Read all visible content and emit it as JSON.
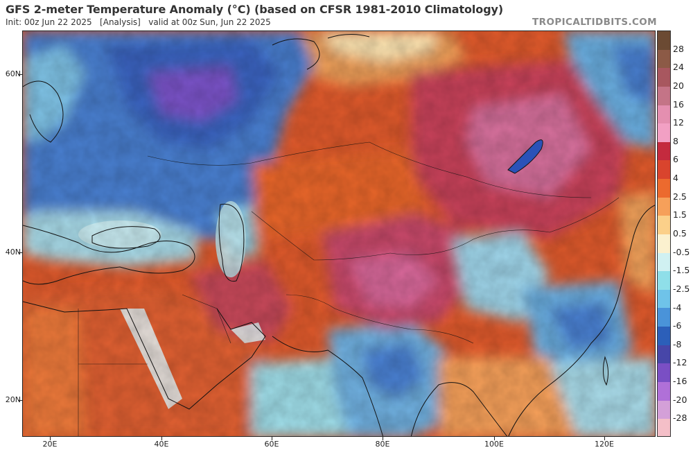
{
  "header": {
    "title": "GFS 2-meter Temperature Anomaly (°C) (based on CFSR 1981-2010 Climatology)",
    "subtitle": "Init: 00z Jun 22 2025   [Analysis]   valid at 00z Sun, Jun 22 2025",
    "brand": "TROPICALTIDBITS.COM"
  },
  "map": {
    "lat_labels": [
      "60N",
      "40N",
      "20N"
    ],
    "lon_labels": [
      "20E",
      "40E",
      "60E",
      "80E",
      "100E",
      "120E"
    ]
  },
  "colorbar": {
    "labels": [
      "28",
      "24",
      "20",
      "16",
      "12",
      "8",
      "6",
      "4",
      "2.5",
      "1.5",
      "0.5",
      "-0.5",
      "-1.5",
      "-2.5",
      "-4",
      "-6",
      "-8",
      "-12",
      "-16",
      "-20",
      "-28"
    ],
    "colors": [
      "#6b4a33",
      "#8c5a46",
      "#a8575f",
      "#c47487",
      "#e48fb0",
      "#f2a0c4",
      "#c42a3e",
      "#d9442d",
      "#ec6a2e",
      "#f6a05a",
      "#fbd08a",
      "#fbf1cf",
      "#d0f1f2",
      "#8fdfe9",
      "#6fc3e9",
      "#4a93d9",
      "#2c5fb9",
      "#4746a8",
      "#7a4fc4",
      "#b070d8",
      "#d4a0d8",
      "#f4bfc8"
    ]
  }
}
